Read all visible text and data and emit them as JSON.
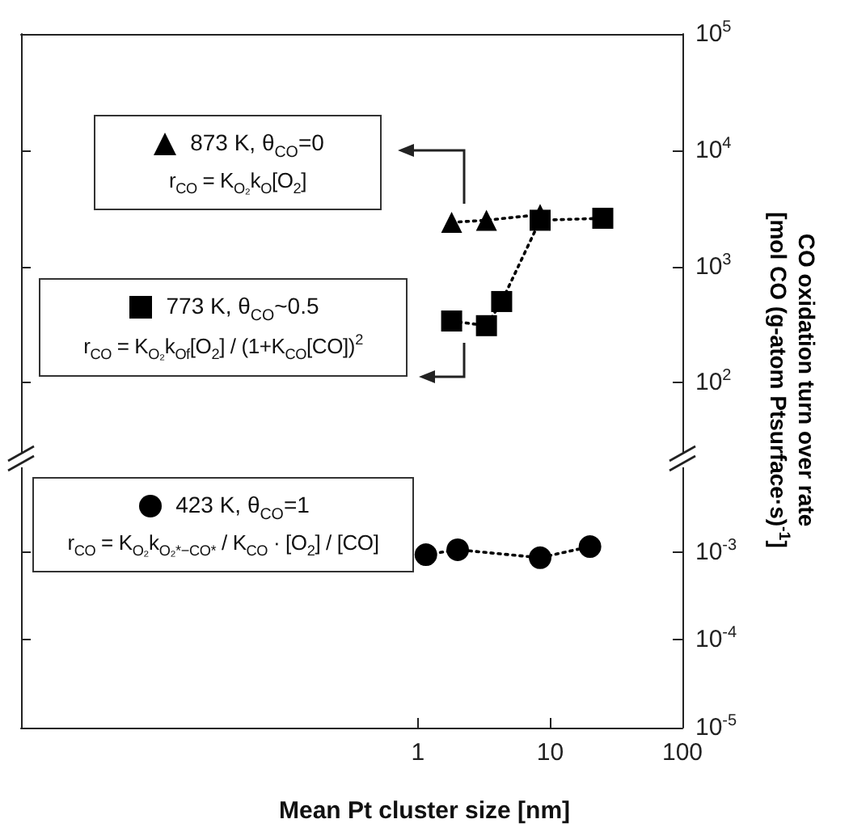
{
  "chart_data": [
    {
      "type": "line",
      "ylabel": "CO oxidation turn over rate\n[mol CO (g-atom Ptsurface·s)$^{-1}$]",
      "log": "xy",
      "line_style": "dotted",
      "legend": "left",
      "tick_labels": "y",
      "grid": false,
      "xlim": [
        0.001,
        100
      ],
      "xticks": [
        1,
        10,
        100
      ],
      "ylim": [
        20,
        100000
      ],
      "yticks": [
        {
          "value": 100,
          "label": "10$^{2}$"
        },
        {
          "value": 1000,
          "label": "10$^{3}$"
        },
        {
          "value": 10000,
          "label": "10$^{4}$"
        },
        {
          "value": 100000,
          "label": "10$^{5}$"
        }
      ],
      "annotations": [
        "r$_{CO}$ = K$_{O₂}$k$_{O}$[O$_{2}$]",
        "r$_{CO}$ = K$_{O₂}$k$_{Of}$[O$_{2}$] / (1+K$_{CO}$[CO])$^{2}$"
      ],
      "series": [
        {
          "name": "873 K, θ$_{CO}$=0",
          "color": "#000000",
          "marker": "triangle",
          "x": [
            1.8,
            3.3,
            8.4
          ],
          "values": [
            2400,
            2500,
            2800
          ]
        },
        {
          "name": "773 K, θ$_{CO}$~0.5",
          "color": "#000000",
          "marker": "square",
          "x": [
            1.8,
            3.3,
            4.3,
            8.4,
            25
          ],
          "values": [
            340,
            310,
            500,
            2500,
            2600
          ]
        }
      ]
    },
    {
      "type": "line",
      "xlabel": "Mean Pt cluster size [nm]",
      "log": "xy",
      "line_style": "dotted",
      "legend": "left",
      "grid": false,
      "xlim": [
        0.001,
        100
      ],
      "xticks": [
        1,
        10,
        100
      ],
      "ylim": [
        1e-05,
        0.01
      ],
      "yticks": [
        {
          "value": 1e-05,
          "label": "10$^{-5}$"
        },
        {
          "value": 0.0001,
          "label": "10$^{-4}$"
        },
        {
          "value": 0.001,
          "label": "10$^{-3}$"
        }
      ],
      "annotations": [
        "r$_{CO}$ = K$_{O₂}$k$_{O₂*−CO*}$ / K$_{CO}$ · [O$_{2}$] / [CO]"
      ],
      "series": [
        {
          "name": "423 K, θ$_{CO}$=1",
          "color": "#000000",
          "marker": "circle",
          "x": [
            1.15,
            2.0,
            8.4,
            20
          ],
          "values": [
            0.00093,
            0.00106,
            0.00086,
            0.00115
          ]
        }
      ]
    }
  ]
}
